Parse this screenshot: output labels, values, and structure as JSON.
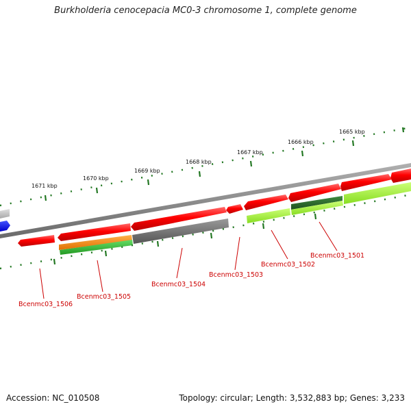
{
  "title": "Burkholderia cenocepacia MC0-3 chromosome 1, complete genome",
  "footer": {
    "accession": "Accession: NC_010508",
    "summary": "Topology: circular; Length: 3,532,883 bp; Genes: 3,233"
  },
  "kbp_labels": [
    "1665 kbp",
    "1666 kbp",
    "1667 kbp",
    "1668 kbp",
    "1669 kbp",
    "1670 kbp",
    "1671 kbp"
  ],
  "gene_labels": [
    "Bcenmc03_1501",
    "Bcenmc03_1502",
    "Bcenmc03_1503",
    "Bcenmc03_1504",
    "Bcenmc03_1505",
    "Bcenmc03_1506"
  ],
  "colors": {
    "cds": "#ff0000",
    "rna": "#808080",
    "backbone": "#888888",
    "blue_feature": "#0000ff",
    "orange_feature": "#ff8c00",
    "green_feature": "#33bb33",
    "dark_green_feature": "#2d6e2d",
    "lime_feature": "#aaff33",
    "tick": "#227722",
    "label": "#cc0000"
  }
}
